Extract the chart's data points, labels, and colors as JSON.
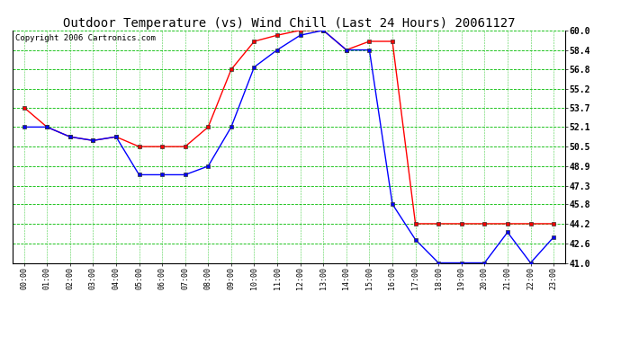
{
  "title": "Outdoor Temperature (vs) Wind Chill (Last 24 Hours) 20061127",
  "copyright": "Copyright 2006 Cartronics.com",
  "x_labels": [
    "00:00",
    "01:00",
    "02:00",
    "03:00",
    "04:00",
    "05:00",
    "06:00",
    "07:00",
    "08:00",
    "09:00",
    "10:00",
    "11:00",
    "12:00",
    "13:00",
    "14:00",
    "15:00",
    "16:00",
    "17:00",
    "18:00",
    "19:00",
    "20:00",
    "21:00",
    "22:00",
    "23:00"
  ],
  "temp_red": [
    53.7,
    52.1,
    51.3,
    51.0,
    51.3,
    50.5,
    50.5,
    50.5,
    52.1,
    56.8,
    59.1,
    59.6,
    60.0,
    60.0,
    58.4,
    59.1,
    59.1,
    44.2,
    44.2,
    44.2,
    44.2,
    44.2,
    44.2,
    44.2
  ],
  "temp_blue": [
    52.1,
    52.1,
    51.3,
    51.0,
    51.3,
    48.2,
    48.2,
    48.2,
    48.9,
    52.1,
    57.0,
    58.4,
    59.6,
    60.0,
    58.4,
    58.4,
    45.8,
    42.9,
    41.0,
    41.0,
    41.0,
    43.5,
    41.0,
    43.1
  ],
  "ylim_min": 41.0,
  "ylim_max": 60.0,
  "yticks": [
    41.0,
    42.6,
    44.2,
    45.8,
    47.3,
    48.9,
    50.5,
    52.1,
    53.7,
    55.2,
    56.8,
    58.4,
    60.0
  ],
  "red_color": "#ff0000",
  "blue_color": "#0000ff",
  "green_grid_color": "#00bb00",
  "bg_color": "#ffffff",
  "title_fontsize": 10,
  "copyright_fontsize": 6.5
}
